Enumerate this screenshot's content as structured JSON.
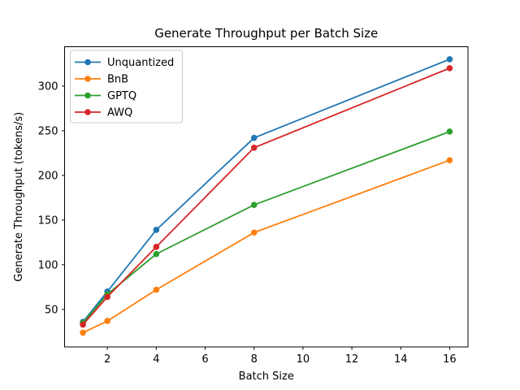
{
  "chart_data": {
    "type": "line",
    "title": "Generate Throughput per Batch Size",
    "xlabel": "Batch Size",
    "ylabel": "Generate Throughput (tokens/s)",
    "x": [
      1,
      2,
      4,
      8,
      16
    ],
    "series": [
      {
        "name": "Unquantized",
        "color": "#1f77b4",
        "values": [
          36,
          70,
          139,
          242,
          330
        ]
      },
      {
        "name": "BnB",
        "color": "#ff7f0e",
        "values": [
          24,
          37,
          72,
          136,
          217
        ]
      },
      {
        "name": "GPTQ",
        "color": "#2ca02c",
        "values": [
          35,
          67,
          112,
          167,
          249
        ]
      },
      {
        "name": "AWQ",
        "color": "#d62728",
        "values": [
          33,
          64,
          120,
          231,
          320
        ]
      }
    ],
    "x_ticks": [
      "2",
      "4",
      "6",
      "8",
      "10",
      "12",
      "14",
      "16"
    ],
    "x_tick_values": [
      2,
      4,
      6,
      8,
      10,
      12,
      14,
      16
    ],
    "y_ticks": [
      "50",
      "100",
      "150",
      "200",
      "250",
      "300"
    ],
    "y_tick_values": [
      50,
      100,
      150,
      200,
      250,
      300
    ],
    "xlim": [
      0.25,
      16.75
    ],
    "ylim": [
      8,
      344
    ],
    "grid": false,
    "legend_position": "upper left",
    "marker": "circle",
    "colors": {
      "spine": "#000000",
      "legend_border": "#cccccc",
      "background": "#ffffff"
    }
  }
}
